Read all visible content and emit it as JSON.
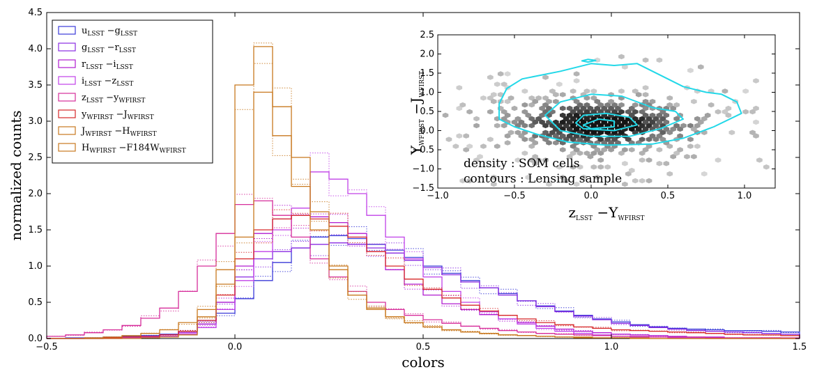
{
  "chart_data": [
    {
      "type": "line",
      "subtype": "step-histogram",
      "xlabel": "colors",
      "ylabel": "normalized counts",
      "xlim": [
        -0.5,
        1.5
      ],
      "ylim": [
        0.0,
        4.5
      ],
      "xticks": [
        "−0.5",
        "0.0",
        "0.5",
        "1.0",
        "1.5"
      ],
      "yticks": [
        "0.0",
        "0.5",
        "1.0",
        "1.5",
        "2.0",
        "2.5",
        "3.0",
        "3.5",
        "4.0",
        "4.5"
      ],
      "grid": false,
      "legend_position": "top-left",
      "bin_edges": [
        -0.5,
        -0.45,
        -0.4,
        -0.35,
        -0.3,
        -0.25,
        -0.2,
        -0.15,
        -0.1,
        -0.05,
        0.0,
        0.05,
        0.1,
        0.15,
        0.2,
        0.25,
        0.3,
        0.35,
        0.4,
        0.45,
        0.5,
        0.55,
        0.6,
        0.65,
        0.7,
        0.75,
        0.8,
        0.85,
        0.9,
        0.95,
        1.0,
        1.05,
        1.1,
        1.15,
        1.2,
        1.25,
        1.3,
        1.35,
        1.4,
        1.45,
        1.5
      ],
      "series": [
        {
          "name": "u_LSST − g_LSST",
          "label_main": [
            "u",
            "−g"
          ],
          "label_sub": [
            "LSST",
            "LSST"
          ],
          "color": "#3a3ad8",
          "values": [
            0.0,
            0.01,
            0.01,
            0.02,
            0.03,
            0.04,
            0.06,
            0.1,
            0.2,
            0.35,
            0.55,
            0.8,
            1.05,
            1.25,
            1.4,
            1.42,
            1.38,
            1.3,
            1.22,
            1.12,
            1.0,
            0.9,
            0.8,
            0.7,
            0.62,
            0.52,
            0.45,
            0.38,
            0.32,
            0.27,
            0.23,
            0.19,
            0.16,
            0.14,
            0.13,
            0.12,
            0.11,
            0.11,
            0.1,
            0.09
          ]
        },
        {
          "name": "g_LSST − r_LSST",
          "label_main": [
            "g",
            "−r"
          ],
          "label_sub": [
            "LSST",
            "LSST"
          ],
          "color": "#8a2be2",
          "values": [
            0.0,
            0.0,
            0.01,
            0.01,
            0.02,
            0.03,
            0.05,
            0.1,
            0.25,
            0.5,
            0.85,
            1.1,
            1.2,
            1.25,
            1.3,
            1.32,
            1.3,
            1.25,
            1.18,
            1.08,
            0.98,
            0.88,
            0.78,
            0.7,
            0.6,
            0.52,
            0.44,
            0.37,
            0.31,
            0.26,
            0.21,
            0.18,
            0.15,
            0.13,
            0.11,
            0.1,
            0.09,
            0.08,
            0.07,
            0.06
          ]
        },
        {
          "name": "r_LSST − i_LSST",
          "label_main": [
            "r",
            "−i"
          ],
          "label_sub": [
            "LSST",
            "LSST"
          ],
          "color": "#b01ad0",
          "values": [
            0.0,
            0.0,
            0.0,
            0.01,
            0.02,
            0.03,
            0.05,
            0.08,
            0.2,
            0.5,
            1.0,
            1.45,
            1.65,
            1.7,
            1.68,
            1.6,
            1.45,
            1.2,
            0.95,
            0.75,
            0.6,
            0.48,
            0.4,
            0.33,
            0.27,
            0.22,
            0.17,
            0.13,
            0.1,
            0.08,
            0.06,
            0.05,
            0.04,
            0.03,
            0.02,
            0.02,
            0.01,
            0.01,
            0.01,
            0.0
          ]
        },
        {
          "name": "i_LSST − z_LSST",
          "label_main": [
            "i",
            "−z"
          ],
          "label_sub": [
            "LSST",
            "LSST"
          ],
          "color": "#c040e8",
          "values": [
            0.0,
            0.0,
            0.0,
            0.0,
            0.01,
            0.02,
            0.03,
            0.06,
            0.15,
            0.4,
            0.8,
            1.2,
            1.5,
            1.8,
            2.3,
            2.2,
            2.0,
            1.7,
            1.4,
            1.1,
            0.85,
            0.65,
            0.5,
            0.37,
            0.27,
            0.2,
            0.14,
            0.1,
            0.07,
            0.05,
            0.03,
            0.02,
            0.02,
            0.01,
            0.01,
            0.0,
            0.0,
            0.0,
            0.0,
            0.0
          ]
        },
        {
          "name": "z_LSST − y_WFIRST",
          "label_main": [
            "z",
            "−y"
          ],
          "label_sub": [
            "LSST",
            "WFIRST"
          ],
          "color": "#d62d9a",
          "values": [
            0.03,
            0.05,
            0.08,
            0.12,
            0.18,
            0.28,
            0.42,
            0.65,
            1.0,
            1.45,
            1.85,
            1.9,
            1.7,
            1.4,
            1.1,
            0.85,
            0.65,
            0.5,
            0.4,
            0.32,
            0.26,
            0.21,
            0.17,
            0.14,
            0.11,
            0.09,
            0.07,
            0.06,
            0.05,
            0.04,
            0.03,
            0.03,
            0.02,
            0.02,
            0.02,
            0.01,
            0.01,
            0.01,
            0.01,
            0.01
          ]
        },
        {
          "name": "y_WFIRST − J_WFIRST",
          "label_main": [
            "y",
            "−J"
          ],
          "label_sub": [
            "WFIRST",
            "WFIRST"
          ],
          "color": "#d62728",
          "values": [
            0.0,
            0.0,
            0.0,
            0.01,
            0.02,
            0.03,
            0.05,
            0.1,
            0.25,
            0.6,
            1.1,
            1.5,
            1.65,
            1.7,
            1.65,
            1.55,
            1.4,
            1.2,
            1.0,
            0.82,
            0.68,
            0.56,
            0.46,
            0.38,
            0.32,
            0.27,
            0.22,
            0.19,
            0.16,
            0.14,
            0.12,
            0.11,
            0.1,
            0.09,
            0.08,
            0.07,
            0.06,
            0.05,
            0.05,
            0.04
          ]
        },
        {
          "name": "J_WFIRST − H_WFIRST",
          "label_main": [
            "J",
            "−H"
          ],
          "label_sub": [
            "WFIRST",
            "WFIRST"
          ],
          "color": "#c8781e",
          "values": [
            0.0,
            0.0,
            0.0,
            0.0,
            0.0,
            0.01,
            0.02,
            0.05,
            0.3,
            0.95,
            3.5,
            4.03,
            3.2,
            2.5,
            1.75,
            1.0,
            0.6,
            0.4,
            0.3,
            0.22,
            0.16,
            0.12,
            0.09,
            0.07,
            0.05,
            0.04,
            0.03,
            0.02,
            0.01,
            0.01,
            0.01,
            0.0,
            0.0,
            0.0,
            0.0,
            0.0,
            0.0,
            0.0,
            0.0,
            0.0
          ]
        },
        {
          "name": "H_WFIRST − F184W_WFIRST",
          "label_main": [
            "H",
            "−F184W"
          ],
          "label_sub": [
            "WFIRST",
            "WFIRST"
          ],
          "color": "#c8781e",
          "values": [
            0.0,
            0.0,
            0.01,
            0.02,
            0.04,
            0.07,
            0.12,
            0.22,
            0.4,
            0.75,
            1.4,
            3.4,
            2.8,
            2.1,
            1.5,
            0.95,
            0.6,
            0.42,
            0.3,
            0.22,
            0.16,
            0.12,
            0.09,
            0.07,
            0.05,
            0.04,
            0.03,
            0.02,
            0.02,
            0.01,
            0.01,
            0.01,
            0.0,
            0.0,
            0.0,
            0.0,
            0.0,
            0.0,
            0.0,
            0.0
          ]
        }
      ]
    },
    {
      "type": "heatmap",
      "subtype": "hexbin-with-contours",
      "xlabel_main": [
        "z",
        "−Y"
      ],
      "xlabel_sub": [
        "LSST",
        "WFIRST"
      ],
      "ylabel_main": [
        "Y",
        "−J"
      ],
      "ylabel_sub": [
        "WFIRST",
        "WFIRST"
      ],
      "xlim": [
        -1.0,
        1.2
      ],
      "ylim": [
        -1.5,
        2.5
      ],
      "xticks": [
        "−1.0",
        "−0.5",
        "0.0",
        "0.5",
        "1.0"
      ],
      "yticks": [
        "−1.5",
        "−1.0",
        "−0.5",
        "0.0",
        "0.5",
        "1.0",
        "1.5",
        "2.0",
        "2.5"
      ],
      "density_center": [
        0.05,
        0.15
      ],
      "contour_color": "#22d8e8",
      "contours": [
        [
          [
            -0.6,
            0.7
          ],
          [
            -0.55,
            1.1
          ],
          [
            -0.45,
            1.35
          ],
          [
            -0.2,
            1.55
          ],
          [
            0.0,
            1.75
          ],
          [
            0.15,
            1.7
          ],
          [
            0.3,
            1.75
          ],
          [
            0.45,
            1.45
          ],
          [
            0.6,
            1.15
          ],
          [
            0.75,
            1.0
          ],
          [
            0.85,
            0.95
          ],
          [
            0.95,
            0.75
          ],
          [
            0.98,
            0.45
          ],
          [
            0.8,
            0.1
          ],
          [
            0.6,
            -0.2
          ],
          [
            0.4,
            -0.35
          ],
          [
            0.1,
            -0.38
          ],
          [
            -0.15,
            -0.3
          ],
          [
            -0.35,
            -0.1
          ],
          [
            -0.5,
            0.1
          ],
          [
            -0.6,
            0.3
          ]
        ],
        [
          [
            -0.3,
            0.4
          ],
          [
            -0.2,
            0.75
          ],
          [
            0.0,
            0.95
          ],
          [
            0.2,
            0.9
          ],
          [
            0.4,
            0.6
          ],
          [
            0.55,
            0.5
          ],
          [
            0.6,
            0.3
          ],
          [
            0.45,
            0.05
          ],
          [
            0.25,
            -0.15
          ],
          [
            0.0,
            -0.15
          ],
          [
            -0.2,
            0.0
          ]
        ],
        [
          [
            -0.1,
            0.2
          ],
          [
            -0.05,
            0.4
          ],
          [
            0.1,
            0.45
          ],
          [
            0.25,
            0.35
          ],
          [
            0.3,
            0.15
          ],
          [
            0.15,
            0.0
          ],
          [
            -0.05,
            0.05
          ]
        ],
        [
          [
            -0.05,
            0.15
          ],
          [
            0.05,
            0.3
          ],
          [
            0.15,
            0.25
          ],
          [
            0.15,
            0.1
          ],
          [
            0.0,
            0.05
          ]
        ],
        [
          [
            -0.06,
            1.82
          ],
          [
            -0.02,
            1.86
          ],
          [
            0.03,
            1.83
          ],
          [
            -0.02,
            1.79
          ]
        ]
      ],
      "annotations": [
        "density :  SOM cells",
        "contours :  Lensing sample"
      ]
    }
  ]
}
